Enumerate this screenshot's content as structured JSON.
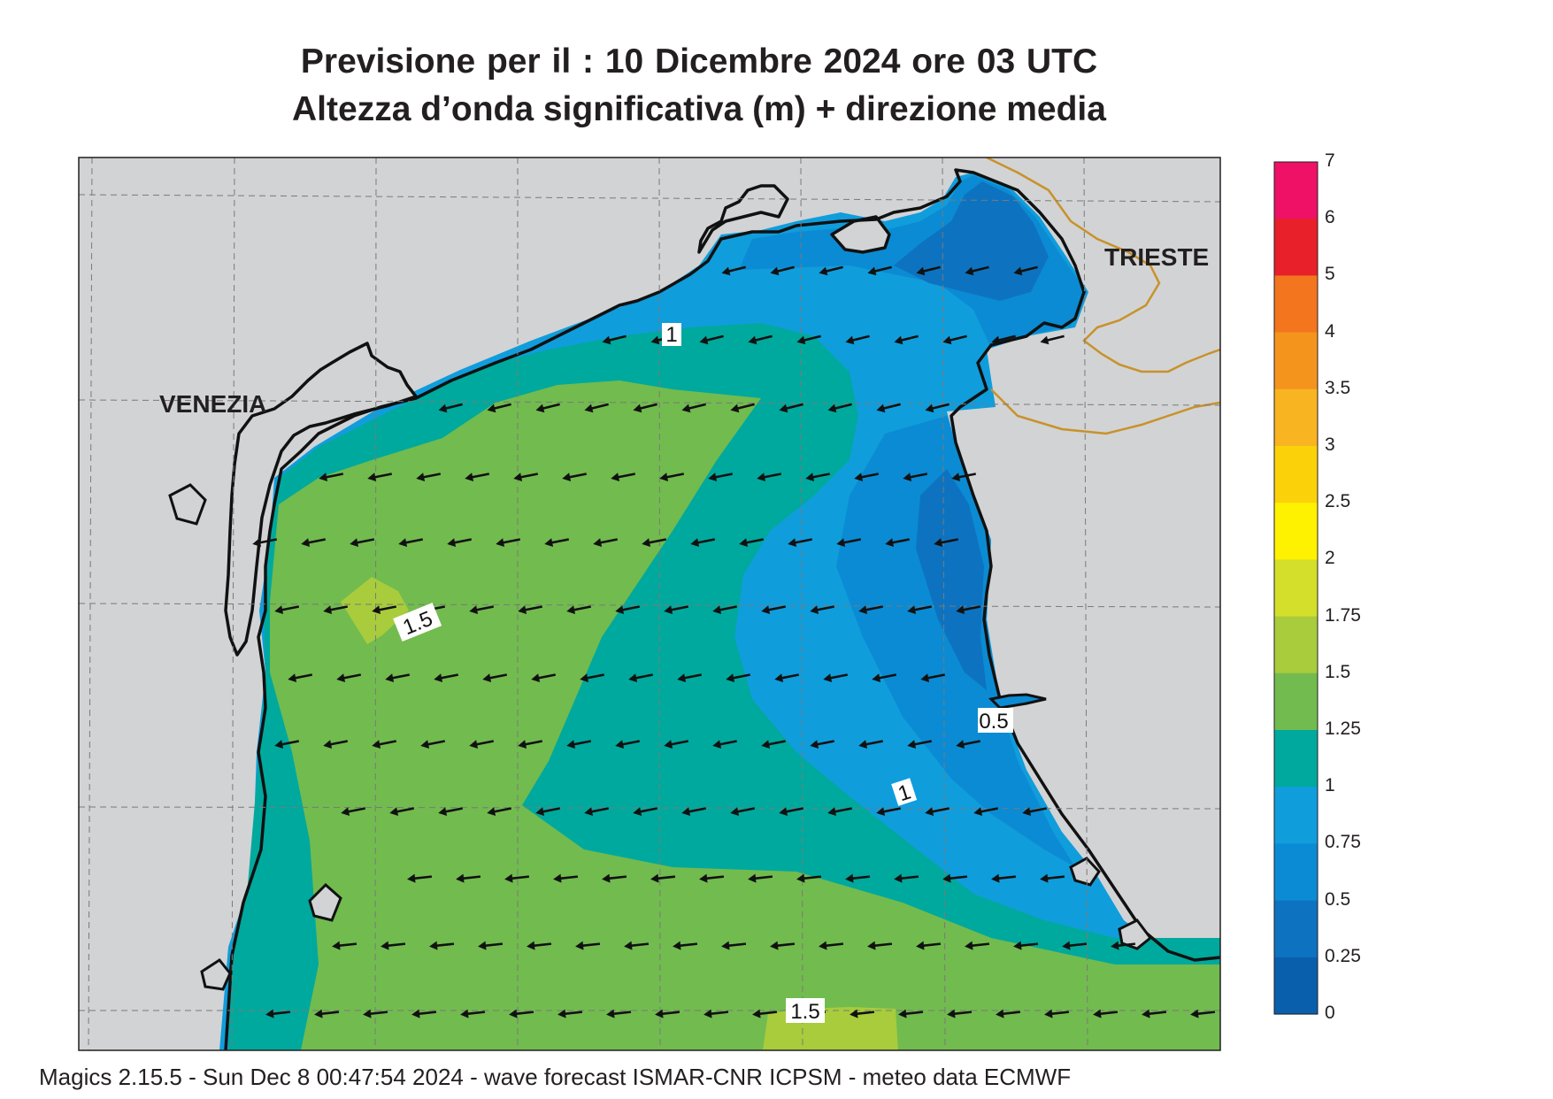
{
  "title": {
    "line1": "Previsione per il  :  10 Dicembre  2024   ore 03 UTC",
    "line2": "Altezza d’onda significativa (m) + direzione media"
  },
  "footer": "Magics 2.15.5 - Sun Dec  8 00:47:54 2024 - wave forecast  ISMAR-CNR  ICPSM - meteo data   ECMWF",
  "cities": {
    "venezia": "VENEZIA",
    "trieste": "TRIESTE"
  },
  "contour_labels": {
    "a": "1",
    "b": "1.5",
    "c": "0.5",
    "d": "1",
    "e": "1.5"
  },
  "colorbar": {
    "labels": [
      "7",
      "6",
      "5",
      "4",
      "3.5",
      "3",
      "2.5",
      "2",
      "1.75",
      "1.5",
      "1.25",
      "1",
      "0.75",
      "0.5",
      "0.25",
      "0"
    ],
    "colors": [
      "#ee1166",
      "#e8202a",
      "#f3761e",
      "#f5941d",
      "#f9b421",
      "#fbd20a",
      "#fff200",
      "#d3df2a",
      "#a8cc3c",
      "#72bb4f",
      "#00a99d",
      "#109ddc",
      "#0b8bd3",
      "#0d73c0",
      "#0a5fad"
    ]
  },
  "legend": {
    "h_0_025": "#0a5fad",
    "h_025_05": "#0d73c0",
    "h_05_075": "#0b8bd3",
    "h_075_1": "#109ddc",
    "h_1_125": "#00a99d",
    "h_125_15": "#72bb4f",
    "h_15_175": "#a8cc3c",
    "land": "#d2d3d5",
    "border": "#c8922a"
  }
}
